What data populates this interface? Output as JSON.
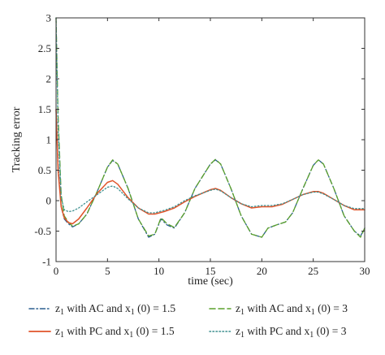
{
  "chart_data": {
    "type": "line",
    "title": "",
    "xlabel": "time (sec)",
    "ylabel": "Tracking error",
    "xlim": [
      0,
      30
    ],
    "ylim": [
      -1,
      3
    ],
    "x_ticks": [
      0,
      5,
      10,
      15,
      20,
      25,
      30
    ],
    "y_ticks": [
      -1,
      -0.5,
      0,
      0.5,
      1,
      1.5,
      2,
      2.5,
      3
    ],
    "grid": false,
    "legend_position": "below plot, two columns",
    "series": [
      {
        "name": "z1 with AC and x1 (0) = 1.5",
        "legend": {
          "pre": "z",
          "sub1": "1",
          "mid": " with AC and x",
          "sub2": "1",
          "post": " (0) = 1.5"
        },
        "color": "#2b5f8f",
        "dash": "dashdot",
        "points": [
          [
            0,
            1.5
          ],
          [
            0.2,
            0.6
          ],
          [
            0.5,
            -0.1
          ],
          [
            0.8,
            -0.3
          ],
          [
            1.2,
            -0.38
          ],
          [
            1.6,
            -0.43
          ],
          [
            2.2,
            -0.38
          ],
          [
            3,
            -0.22
          ],
          [
            4,
            0.15
          ],
          [
            5,
            0.55
          ],
          [
            5.5,
            0.66
          ],
          [
            6,
            0.6
          ],
          [
            7,
            0.2
          ],
          [
            8,
            -0.3
          ],
          [
            9,
            -0.6
          ],
          [
            9.6,
            -0.55
          ],
          [
            10.2,
            -0.3
          ],
          [
            10.8,
            -0.4
          ],
          [
            11.5,
            -0.45
          ],
          [
            12.5,
            -0.2
          ],
          [
            13.5,
            0.2
          ],
          [
            15,
            0.6
          ],
          [
            15.5,
            0.67
          ],
          [
            16,
            0.6
          ],
          [
            17,
            0.2
          ],
          [
            18,
            -0.25
          ],
          [
            19,
            -0.55
          ],
          [
            20,
            -0.6
          ],
          [
            20.6,
            -0.45
          ],
          [
            21.4,
            -0.4
          ],
          [
            22.3,
            -0.35
          ],
          [
            23,
            -0.2
          ],
          [
            24,
            0.2
          ],
          [
            25,
            0.58
          ],
          [
            25.5,
            0.67
          ],
          [
            26,
            0.6
          ],
          [
            27,
            0.2
          ],
          [
            28,
            -0.25
          ],
          [
            29,
            -0.5
          ],
          [
            29.6,
            -0.58
          ],
          [
            30,
            -0.45
          ]
        ]
      },
      {
        "name": "z1 with AC and x1 (0) = 3",
        "legend": {
          "pre": "z",
          "sub1": "1",
          "mid": " with AC and x",
          "sub2": "1",
          "post": " (0) = 3"
        },
        "color": "#5aa02c",
        "dash": "dashed",
        "points": [
          [
            0,
            3
          ],
          [
            0.2,
            1.4
          ],
          [
            0.5,
            0.1
          ],
          [
            0.8,
            -0.25
          ],
          [
            1.2,
            -0.35
          ],
          [
            1.6,
            -0.42
          ],
          [
            2.2,
            -0.38
          ],
          [
            3,
            -0.22
          ],
          [
            4,
            0.15
          ],
          [
            5,
            0.55
          ],
          [
            5.5,
            0.67
          ],
          [
            6,
            0.6
          ],
          [
            7,
            0.2
          ],
          [
            8,
            -0.3
          ],
          [
            9,
            -0.58
          ],
          [
            9.6,
            -0.55
          ],
          [
            10.2,
            -0.28
          ],
          [
            10.8,
            -0.38
          ],
          [
            11.5,
            -0.44
          ],
          [
            12.5,
            -0.2
          ],
          [
            13.5,
            0.2
          ],
          [
            15,
            0.6
          ],
          [
            15.5,
            0.68
          ],
          [
            16,
            0.6
          ],
          [
            17,
            0.2
          ],
          [
            18,
            -0.25
          ],
          [
            19,
            -0.55
          ],
          [
            20,
            -0.6
          ],
          [
            20.6,
            -0.45
          ],
          [
            21.4,
            -0.4
          ],
          [
            22.3,
            -0.35
          ],
          [
            23,
            -0.2
          ],
          [
            24,
            0.2
          ],
          [
            25,
            0.58
          ],
          [
            25.5,
            0.67
          ],
          [
            26,
            0.6
          ],
          [
            27,
            0.2
          ],
          [
            28,
            -0.25
          ],
          [
            29,
            -0.5
          ],
          [
            29.6,
            -0.6
          ],
          [
            30,
            -0.45
          ]
        ]
      },
      {
        "name": "z1 with PC and x1 (0) = 1.5",
        "legend": {
          "pre": "z",
          "sub1": "1",
          "mid": " with PC and x",
          "sub2": "1",
          "post": " (0) = 1.5"
        },
        "color": "#e0542a",
        "dash": "solid",
        "points": [
          [
            0,
            1.5
          ],
          [
            0.2,
            0.5
          ],
          [
            0.5,
            -0.1
          ],
          [
            0.8,
            -0.28
          ],
          [
            1.2,
            -0.36
          ],
          [
            1.6,
            -0.38
          ],
          [
            2.2,
            -0.3
          ],
          [
            3,
            -0.12
          ],
          [
            4,
            0.12
          ],
          [
            5,
            0.3
          ],
          [
            5.5,
            0.33
          ],
          [
            6,
            0.27
          ],
          [
            7,
            0.05
          ],
          [
            8,
            -0.12
          ],
          [
            9,
            -0.22
          ],
          [
            9.6,
            -0.22
          ],
          [
            10.5,
            -0.18
          ],
          [
            11.5,
            -0.12
          ],
          [
            12.5,
            -0.02
          ],
          [
            13.5,
            0.07
          ],
          [
            15,
            0.18
          ],
          [
            15.5,
            0.2
          ],
          [
            16,
            0.17
          ],
          [
            17,
            0.05
          ],
          [
            18,
            -0.05
          ],
          [
            19,
            -0.12
          ],
          [
            20,
            -0.1
          ],
          [
            21,
            -0.1
          ],
          [
            22,
            -0.06
          ],
          [
            23,
            0.02
          ],
          [
            24,
            0.1
          ],
          [
            25,
            0.15
          ],
          [
            25.5,
            0.15
          ],
          [
            26,
            0.12
          ],
          [
            27,
            0.02
          ],
          [
            28,
            -0.08
          ],
          [
            29,
            -0.15
          ],
          [
            30,
            -0.15
          ]
        ]
      },
      {
        "name": "z1 with PC and x1 (0) = 3",
        "legend": {
          "pre": "z",
          "sub1": "1",
          "mid": " with PC and x",
          "sub2": "1",
          "post": " (0) = 3"
        },
        "color": "#3d8f8f",
        "dash": "dotted",
        "points": [
          [
            0,
            3
          ],
          [
            0.2,
            1.2
          ],
          [
            0.5,
            0.05
          ],
          [
            0.8,
            -0.15
          ],
          [
            1.2,
            -0.18
          ],
          [
            1.6,
            -0.17
          ],
          [
            2.2,
            -0.12
          ],
          [
            3,
            -0.02
          ],
          [
            4,
            0.1
          ],
          [
            5,
            0.22
          ],
          [
            5.5,
            0.24
          ],
          [
            6,
            0.2
          ],
          [
            7,
            0.03
          ],
          [
            8,
            -0.12
          ],
          [
            9,
            -0.2
          ],
          [
            9.6,
            -0.2
          ],
          [
            10.5,
            -0.16
          ],
          [
            11.5,
            -0.1
          ],
          [
            12.5,
            0
          ],
          [
            13.5,
            0.08
          ],
          [
            15,
            0.17
          ],
          [
            15.5,
            0.19
          ],
          [
            16,
            0.16
          ],
          [
            17,
            0.05
          ],
          [
            18,
            -0.05
          ],
          [
            19,
            -0.1
          ],
          [
            20,
            -0.08
          ],
          [
            21,
            -0.08
          ],
          [
            22,
            -0.05
          ],
          [
            23,
            0.02
          ],
          [
            24,
            0.1
          ],
          [
            25,
            0.14
          ],
          [
            25.5,
            0.14
          ],
          [
            26,
            0.11
          ],
          [
            27,
            0.02
          ],
          [
            28,
            -0.08
          ],
          [
            29,
            -0.13
          ],
          [
            30,
            -0.13
          ]
        ]
      }
    ]
  }
}
